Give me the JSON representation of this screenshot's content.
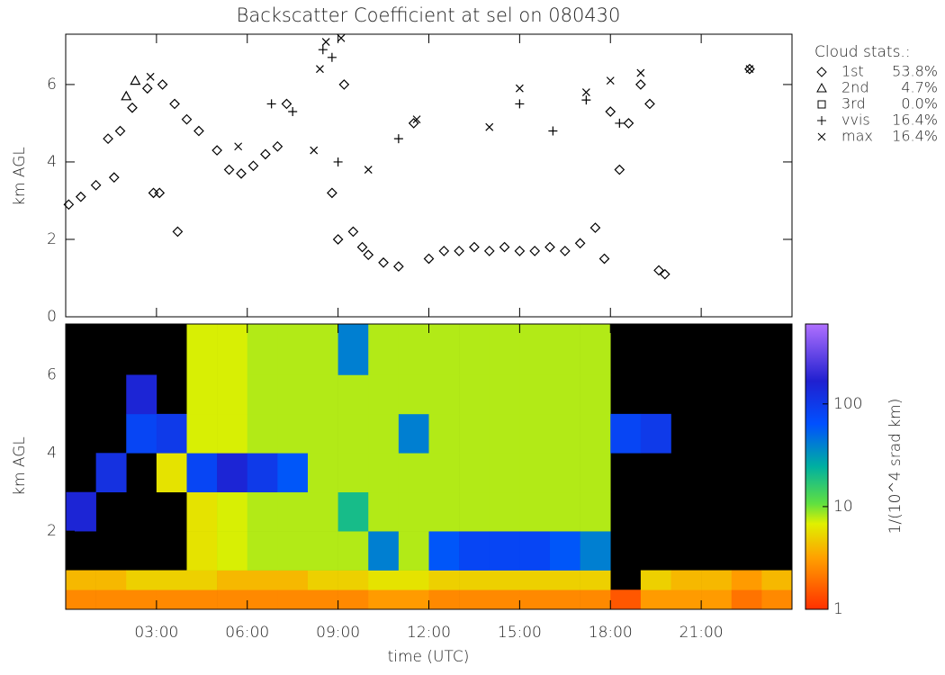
{
  "chart_data": [
    {
      "type": "scatter",
      "title": "Backscatter Coefficient at sel on 080430",
      "ylabel": "km AGL",
      "legend_title": "Cloud stats.:",
      "xlim": [
        0,
        24
      ],
      "ylim": [
        0,
        7.3
      ],
      "xticks": [
        {
          "value": 3,
          "label": "03:00"
        },
        {
          "value": 6,
          "label": "06:00"
        },
        {
          "value": 9,
          "label": "09:00"
        },
        {
          "value": 12,
          "label": "12:00"
        },
        {
          "value": 15,
          "label": "15:00"
        },
        {
          "value": 18,
          "label": "18:00"
        },
        {
          "value": 21,
          "label": "21:00"
        }
      ],
      "yticks": [
        0,
        2,
        4,
        6
      ],
      "series": [
        {
          "name": "1st",
          "stat": "53.8%",
          "marker": "diamond",
          "color": "#000000",
          "x": [
            0.1,
            0.5,
            1.0,
            1.4,
            1.8,
            2.2,
            2.7,
            3.2,
            3.6,
            4.0,
            4.4,
            5.0,
            5.4,
            5.8,
            6.2,
            6.6,
            7.0,
            7.3,
            1.6,
            2.9,
            3.1,
            3.7,
            9.0,
            9.2,
            9.5,
            10.0,
            10.5,
            11.0,
            11.5,
            12.0,
            12.5,
            13.0,
            13.5,
            14.0,
            14.5,
            15.0,
            15.5,
            16.0,
            16.5,
            17.0,
            17.5,
            17.8,
            18.0,
            18.3,
            18.6,
            19.0,
            19.3,
            19.6,
            19.8,
            22.6,
            8.8,
            9.8
          ],
          "y": [
            2.9,
            3.1,
            3.4,
            4.6,
            4.8,
            5.4,
            5.9,
            6.0,
            5.5,
            5.1,
            4.8,
            4.3,
            3.8,
            3.7,
            3.9,
            4.2,
            4.4,
            5.5,
            3.6,
            3.2,
            3.2,
            2.2,
            2.0,
            6.0,
            2.2,
            1.6,
            1.4,
            1.3,
            5.0,
            1.5,
            1.7,
            1.7,
            1.8,
            1.7,
            1.8,
            1.7,
            1.7,
            1.8,
            1.7,
            1.9,
            2.3,
            1.5,
            5.3,
            3.8,
            5.0,
            6.0,
            5.5,
            1.2,
            1.1,
            6.4,
            3.2,
            1.8
          ]
        },
        {
          "name": "2nd",
          "stat": "4.7%",
          "marker": "triangle",
          "color": "#000000",
          "x": [
            2.0,
            2.3
          ],
          "y": [
            5.7,
            6.1
          ]
        },
        {
          "name": "3rd",
          "stat": "0.0%",
          "marker": "square",
          "color": "#000000",
          "x": [],
          "y": []
        },
        {
          "name": "vvis",
          "stat": "16.4%",
          "marker": "plus",
          "color": "#000000",
          "x": [
            8.5,
            8.8,
            9.0,
            6.8,
            7.5,
            11.0,
            15.0,
            17.2,
            18.3,
            16.1
          ],
          "y": [
            6.9,
            6.7,
            4.0,
            5.5,
            5.3,
            4.6,
            5.5,
            5.6,
            5.0,
            4.8
          ]
        },
        {
          "name": "max",
          "stat": "16.4%",
          "marker": "cross",
          "color": "#000000",
          "x": [
            8.6,
            8.4,
            9.1,
            8.2,
            10.0,
            11.6,
            14.0,
            15.0,
            17.2,
            18.0,
            19.0,
            2.8,
            5.7,
            22.6
          ],
          "y": [
            7.1,
            6.4,
            7.2,
            4.3,
            3.8,
            5.1,
            4.9,
            5.9,
            5.8,
            6.1,
            6.3,
            6.2,
            4.4,
            6.4
          ]
        }
      ]
    },
    {
      "type": "heatmap",
      "xlabel": "time (UTC)",
      "ylabel": "km AGL",
      "colorbar_label": "1/(10^4 srad km)",
      "xlim": [
        0,
        24
      ],
      "ylim": [
        0,
        7.3
      ],
      "xticks": [
        {
          "value": 3,
          "label": "03:00"
        },
        {
          "value": 6,
          "label": "06:00"
        },
        {
          "value": 9,
          "label": "09:00"
        },
        {
          "value": 12,
          "label": "12:00"
        },
        {
          "value": 15,
          "label": "15:00"
        },
        {
          "value": 18,
          "label": "18:00"
        },
        {
          "value": 21,
          "label": "21:00"
        }
      ],
      "yticks": [
        2,
        4,
        6
      ],
      "clim": [
        1,
        600
      ],
      "cticks": [
        1,
        10,
        100
      ],
      "color_log": true,
      "x_bins": [
        0,
        1,
        2,
        3,
        4,
        5,
        6,
        7,
        8,
        9,
        10,
        11,
        12,
        13,
        14,
        15,
        16,
        17,
        18,
        19,
        20,
        21,
        22,
        23,
        24
      ],
      "y_bins": [
        0,
        0.5,
        1,
        2,
        3,
        4,
        5,
        6,
        7.3
      ],
      "values": [
        [
          2.5,
          4,
          null,
          150,
          null,
          null,
          null,
          null
        ],
        [
          2.5,
          4,
          null,
          null,
          120,
          null,
          null,
          null
        ],
        [
          2.5,
          5,
          null,
          null,
          null,
          80,
          150,
          null
        ],
        [
          2.5,
          5,
          null,
          null,
          6,
          100,
          null,
          null
        ],
        [
          2.5,
          5,
          6,
          6,
          80,
          7,
          7,
          7
        ],
        [
          2.5,
          4,
          7,
          7,
          150,
          7,
          7,
          7
        ],
        [
          2.5,
          4,
          8,
          8,
          100,
          8,
          8,
          8
        ],
        [
          2.5,
          4,
          8,
          8,
          60,
          8,
          8,
          8
        ],
        [
          2.5,
          5,
          8,
          8,
          8,
          8,
          8,
          8
        ],
        [
          2.5,
          5,
          8,
          20,
          8,
          8,
          8,
          40
        ],
        [
          3,
          6,
          40,
          8,
          8,
          8,
          8,
          8
        ],
        [
          3,
          6,
          8,
          8,
          8,
          40,
          8,
          8
        ],
        [
          2.5,
          5,
          60,
          8,
          8,
          8,
          8,
          8
        ],
        [
          2.5,
          5,
          80,
          8,
          8,
          8,
          8,
          8
        ],
        [
          2.5,
          5,
          80,
          8,
          8,
          8,
          8,
          8
        ],
        [
          2.5,
          5,
          80,
          8,
          8,
          8,
          8,
          8
        ],
        [
          2.5,
          5,
          60,
          8,
          8,
          8,
          8,
          8
        ],
        [
          2.5,
          5,
          40,
          8,
          8,
          8,
          8,
          8
        ],
        [
          1.5,
          null,
          null,
          null,
          null,
          80,
          null,
          null
        ],
        [
          3,
          5,
          null,
          null,
          null,
          100,
          null,
          null
        ],
        [
          3,
          4,
          null,
          null,
          null,
          null,
          null,
          null
        ],
        [
          3,
          4,
          null,
          null,
          null,
          null,
          null,
          null
        ],
        [
          2,
          3,
          null,
          null,
          null,
          null,
          null,
          null
        ],
        [
          2.5,
          4,
          null,
          null,
          null,
          null,
          null,
          null
        ]
      ]
    }
  ]
}
